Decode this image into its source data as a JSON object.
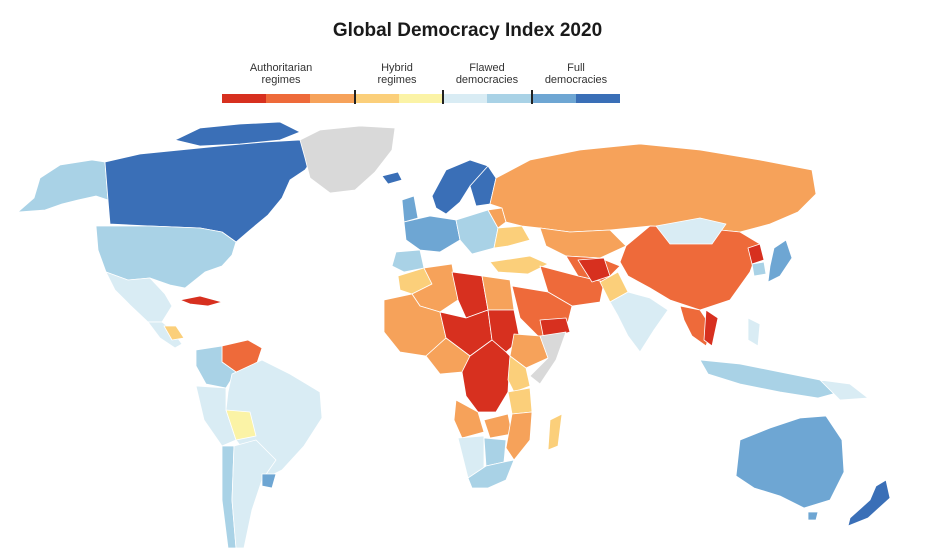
{
  "title": "Global Democracy Index 2020",
  "legend": {
    "categories": [
      {
        "label_line1": "Authoritarian",
        "label_line2": "regimes",
        "colors": [
          "#d7301f",
          "#ee6a3a",
          "#f6a25a"
        ]
      },
      {
        "label_line1": "Hybrid",
        "label_line2": "regimes",
        "colors": [
          "#fbcf7a",
          "#fbf3a6"
        ]
      },
      {
        "label_line1": "Flawed",
        "label_line2": "democracies",
        "colors": [
          "#d9ecf4",
          "#a9d2e6"
        ]
      },
      {
        "label_line1": "Full",
        "label_line2": "democracies",
        "colors": [
          "#6ea6d3",
          "#3a6fb7"
        ]
      }
    ]
  },
  "map_colors": {
    "no_data": "#d9d9d9",
    "ocean": "#ffffff",
    "border": "#ffffff"
  }
}
